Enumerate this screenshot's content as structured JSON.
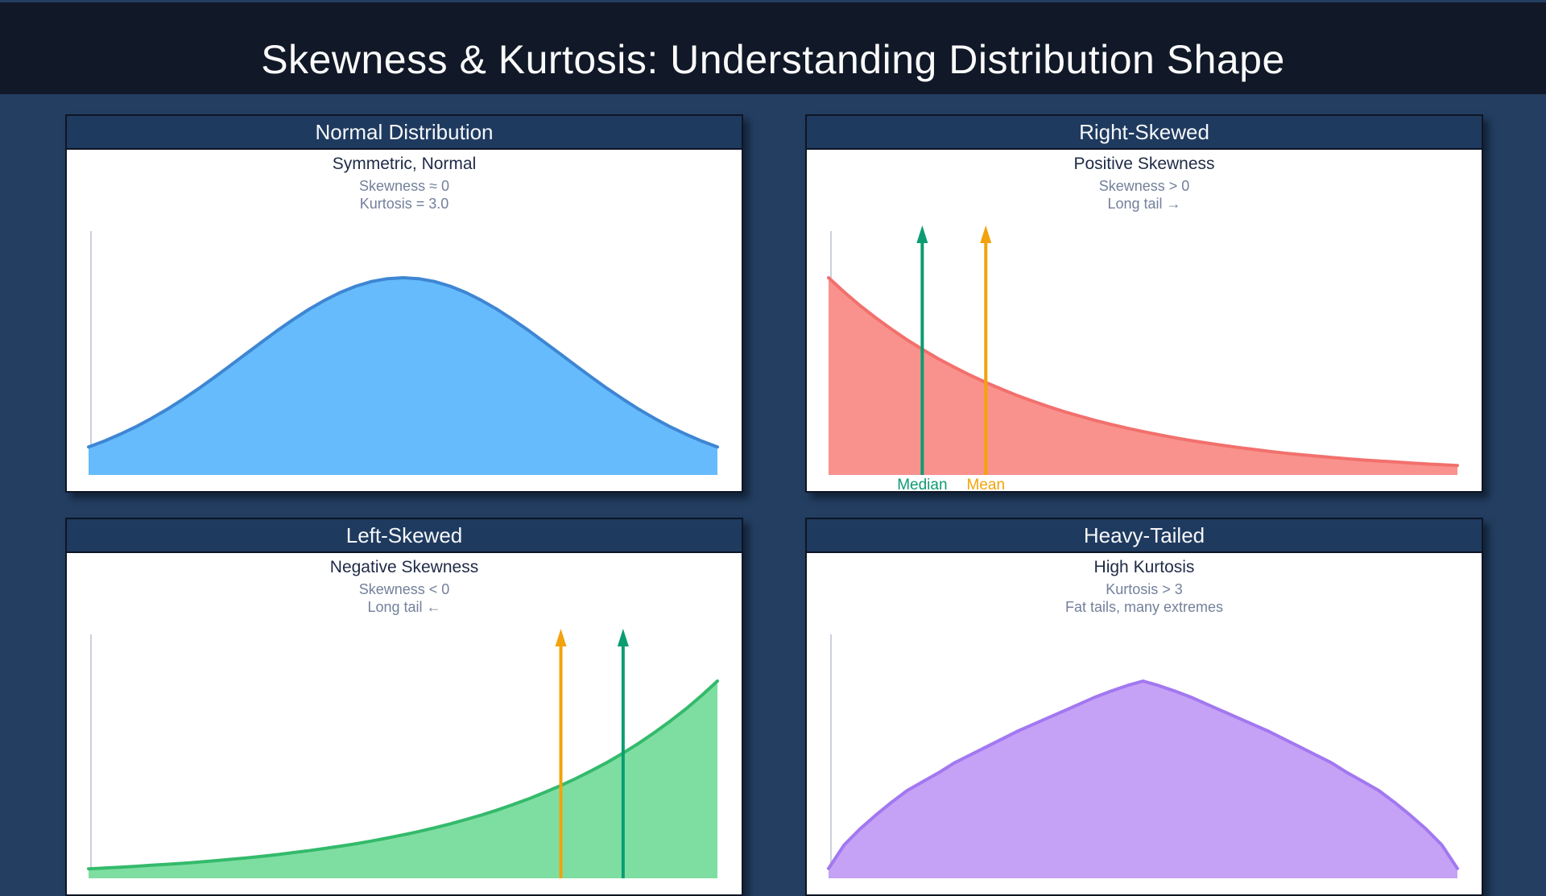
{
  "page": {
    "title": "Skewness & Kurtosis: Understanding Distribution Shape",
    "colors": {
      "background": "#233E61",
      "header_bar": "#111827",
      "title_text": "#FAFAFA",
      "panel_titlebar": "#1F3A5F",
      "panel_border": "#0E1524",
      "panel_bg": "#FFFFFF",
      "subtitle_text": "#1E2A46",
      "stat_text": "#73809B",
      "axis": "#CAD0DB",
      "median_green": "#0B9C72",
      "mean_orange": "#F2A30B"
    }
  },
  "panels": [
    {
      "title": "Normal Distribution",
      "subtitle": "Symmetric, Normal",
      "stats": [
        "Skewness ≈ 0",
        "Kurtosis = 3.0"
      ]
    },
    {
      "title": "Right-Skewed",
      "subtitle": "Positive Skewness",
      "stats": [
        "Skewness > 0",
        "Long tail →"
      ]
    },
    {
      "title": "Left-Skewed",
      "subtitle": "Negative Skewness",
      "stats": [
        "Skewness < 0",
        "Long tail ←"
      ]
    },
    {
      "title": "Heavy-Tailed",
      "subtitle": "High Kurtosis",
      "stats": [
        "Kurtosis > 3",
        "Fat tails, many extremes"
      ]
    }
  ],
  "chart_data": [
    {
      "type": "area",
      "panel": "Normal Distribution",
      "distribution": "normal (symmetric bell curve)",
      "annotations": [
        "Skewness ≈ 0",
        "Kurtosis = 3.0"
      ],
      "x_range_normalized": [
        0,
        1
      ],
      "x_sampling": "41 evenly spaced points",
      "baseline": 0,
      "y": [
        0.142,
        0.172,
        0.206,
        0.244,
        0.287,
        0.333,
        0.384,
        0.438,
        0.495,
        0.554,
        0.614,
        0.673,
        0.732,
        0.787,
        0.839,
        0.885,
        0.925,
        0.957,
        0.981,
        0.995,
        1.0,
        0.995,
        0.981,
        0.957,
        0.925,
        0.885,
        0.839,
        0.787,
        0.732,
        0.673,
        0.614,
        0.554,
        0.495,
        0.438,
        0.384,
        0.333,
        0.287,
        0.244,
        0.206,
        0.172,
        0.142
      ],
      "fill": "#66BBFC",
      "stroke": "#3E86D3",
      "markers": []
    },
    {
      "type": "area",
      "panel": "Right-Skewed",
      "distribution": "right-skewed (exponential-like decay, long right tail)",
      "annotations": [
        "Skewness > 0",
        "Long tail →"
      ],
      "x_range_normalized": [
        0,
        1
      ],
      "x_sampling": "41 evenly spaced points",
      "baseline": 0,
      "y": [
        1.0,
        0.927,
        0.859,
        0.797,
        0.739,
        0.685,
        0.635,
        0.588,
        0.546,
        0.506,
        0.469,
        0.435,
        0.403,
        0.374,
        0.346,
        0.321,
        0.298,
        0.276,
        0.256,
        0.237,
        0.22,
        0.204,
        0.189,
        0.175,
        0.163,
        0.151,
        0.14,
        0.13,
        0.12,
        0.111,
        0.103,
        0.096,
        0.089,
        0.082,
        0.076,
        0.071,
        0.066,
        0.061,
        0.056,
        0.052,
        0.048
      ],
      "fill": "#F9928D",
      "stroke": "#F2706C",
      "markers": [
        {
          "name": "median-line",
          "label": "Median",
          "color": "#0B9C72",
          "x": 0.149
        },
        {
          "name": "mean-line",
          "label": "Mean",
          "color": "#F2A30B",
          "x": 0.25
        }
      ]
    },
    {
      "type": "area",
      "panel": "Left-Skewed",
      "distribution": "left-skewed (exponential-like rise, long left tail)",
      "annotations": [
        "Skewness < 0",
        "Long tail ←"
      ],
      "x_range_normalized": [
        0,
        1
      ],
      "x_sampling": "41 evenly spaced points",
      "baseline": 0,
      "y": [
        0.048,
        0.052,
        0.056,
        0.061,
        0.066,
        0.071,
        0.076,
        0.082,
        0.089,
        0.096,
        0.103,
        0.111,
        0.12,
        0.13,
        0.14,
        0.151,
        0.163,
        0.175,
        0.189,
        0.204,
        0.22,
        0.237,
        0.256,
        0.276,
        0.298,
        0.321,
        0.346,
        0.374,
        0.403,
        0.435,
        0.469,
        0.506,
        0.546,
        0.588,
        0.635,
        0.685,
        0.739,
        0.797,
        0.859,
        0.927,
        1.0
      ],
      "fill": "#7EDEA2",
      "stroke": "#34BA6B",
      "markers": [
        {
          "name": "mean-line",
          "label": "",
          "color": "#F2A30B",
          "x": 0.751
        },
        {
          "name": "median-line",
          "label": "",
          "color": "#0B9C72",
          "x": 0.85
        }
      ]
    },
    {
      "type": "area",
      "panel": "Heavy-Tailed",
      "distribution": "heavy-tailed (high kurtosis, pointed peak, fat tails)",
      "annotations": [
        "Kurtosis > 3",
        "Fat tails, many extremes"
      ],
      "x_range_normalized": [
        0,
        1
      ],
      "x_sampling": "41 evenly spaced points",
      "baseline": 0,
      "y": [
        0.05,
        0.17,
        0.25,
        0.32,
        0.385,
        0.445,
        0.49,
        0.535,
        0.585,
        0.625,
        0.665,
        0.705,
        0.745,
        0.78,
        0.815,
        0.85,
        0.885,
        0.92,
        0.95,
        0.977,
        1.0,
        0.977,
        0.95,
        0.92,
        0.885,
        0.85,
        0.815,
        0.78,
        0.745,
        0.705,
        0.665,
        0.625,
        0.585,
        0.535,
        0.49,
        0.445,
        0.385,
        0.32,
        0.25,
        0.17,
        0.05
      ],
      "fill": "#C5A2F5",
      "stroke": "#A278F0",
      "markers": []
    }
  ]
}
